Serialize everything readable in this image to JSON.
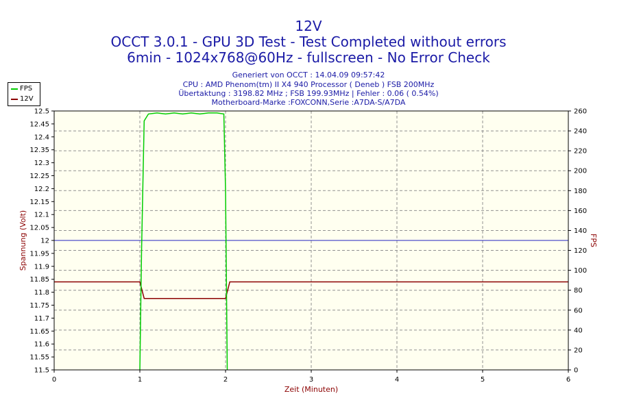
{
  "header": {
    "title1": "12V",
    "title2": "OCCT 3.0.1 - GPU 3D Test - Test Completed without errors",
    "title3": "6min - 1024x768@60Hz - fullscreen - No Error Check",
    "info1": "Generiert von OCCT : 14.04.09 09:57:42",
    "info2": "CPU : AMD Phenom(tm) II X4 940 Processor ( Deneb ) FSB 200MHz",
    "info3": "Übertaktung : 3198.82 MHz ; FSB 199.93MHz | Fehler : 0.06 ( 0.54%)",
    "info4": "Motherboard-Marke :FOXCONN,Serie :A7DA-S/A7DA"
  },
  "legend": [
    {
      "name": "FPS",
      "color": "#00cc00"
    },
    {
      "name": "12V",
      "color": "#8b0000"
    }
  ],
  "chart_data": {
    "type": "line",
    "xlabel": "Zeit (Minuten)",
    "ylabel": "Spannung (Volt)",
    "ylabel_right": "FPS",
    "xlim": [
      0,
      6
    ],
    "ylim": [
      11.5,
      12.5
    ],
    "ylim_right": [
      0,
      260
    ],
    "x_ticks": [
      "0",
      "1",
      "2",
      "3",
      "4",
      "5",
      "6"
    ],
    "y_ticks": [
      "11.5",
      "11.55",
      "11.6",
      "11.65",
      "11.7",
      "11.75",
      "11.8",
      "11.85",
      "11.9",
      "11.95",
      "12",
      "12.05",
      "12.1",
      "12.15",
      "12.2",
      "12.25",
      "12.3",
      "12.35",
      "12.4",
      "12.45",
      "12.5"
    ],
    "y_ticks_right": [
      "0",
      "20",
      "40",
      "60",
      "80",
      "100",
      "120",
      "140",
      "160",
      "180",
      "200",
      "220",
      "240",
      "260"
    ],
    "grid": true,
    "reference_line": {
      "y": 12.0,
      "color": "#2020c0"
    },
    "colors": {
      "fps": "#00cc00",
      "voltage": "#8b0000",
      "plot_bg": "#fffff0"
    },
    "series": [
      {
        "name": "12V",
        "axis": "left",
        "x": [
          0,
          1.0,
          1.05,
          2.0,
          2.05,
          6
        ],
        "y": [
          11.84,
          11.84,
          11.776,
          11.776,
          11.84,
          11.84
        ]
      },
      {
        "name": "FPS",
        "axis": "right",
        "x": [
          1.0,
          1.02,
          1.05,
          1.1,
          1.2,
          1.3,
          1.4,
          1.5,
          1.6,
          1.7,
          1.8,
          1.9,
          1.98,
          2.0,
          2.02
        ],
        "y": [
          0,
          120,
          250,
          257,
          258,
          257,
          258,
          257,
          258,
          257,
          258,
          258,
          257,
          180,
          0
        ]
      }
    ]
  }
}
